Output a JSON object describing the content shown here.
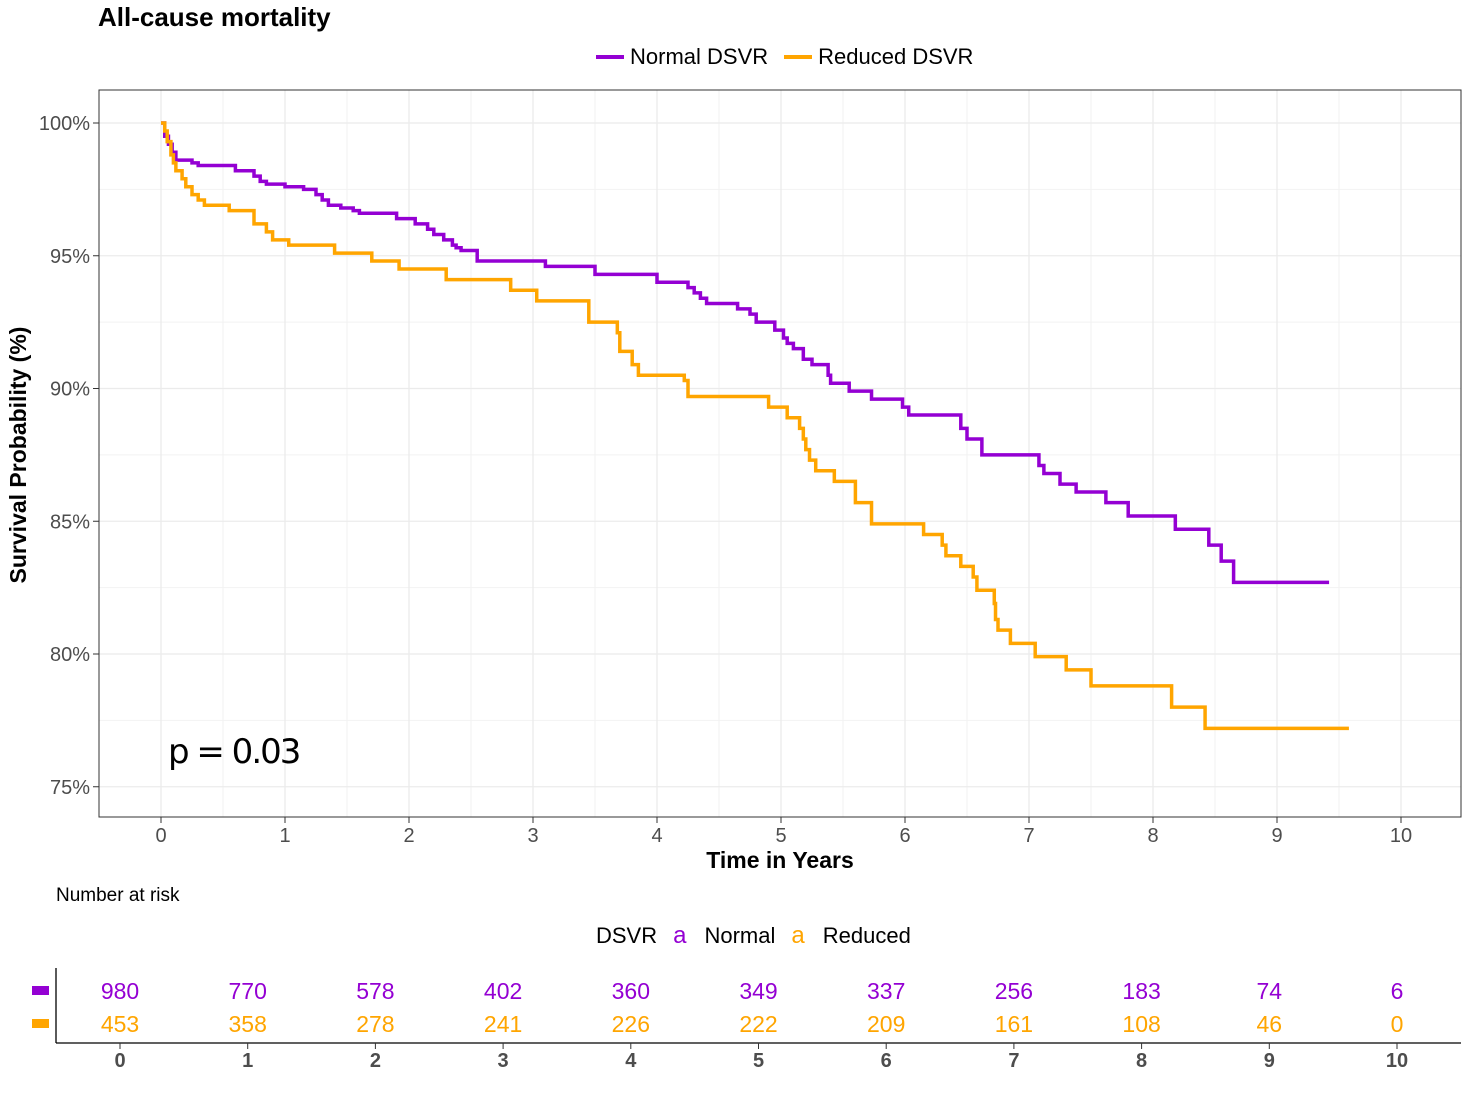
{
  "chart_data": {
    "type": "line",
    "title": "All-cause mortality",
    "xlabel": "Time in Years",
    "ylabel": "Survival Probability (%)",
    "xlim": [
      0,
      10
    ],
    "ylim": [
      75,
      100
    ],
    "x_ticks": [
      "0",
      "1",
      "2",
      "3",
      "4",
      "5",
      "6",
      "7",
      "8",
      "9",
      "10"
    ],
    "y_ticks": [
      "75%",
      "80%",
      "85%",
      "90%",
      "95%",
      "100%"
    ],
    "grid": true,
    "legend_position": "top",
    "annotation": "p = 0.03",
    "series": [
      {
        "name": "Normal DSVR",
        "color": "#9400D3",
        "points": [
          [
            0,
            100
          ],
          [
            0.03,
            99.5
          ],
          [
            0.06,
            99.2
          ],
          [
            0.09,
            98.9
          ],
          [
            0.12,
            98.6
          ],
          [
            0.25,
            98.5
          ],
          [
            0.3,
            98.4
          ],
          [
            0.6,
            98.2
          ],
          [
            0.75,
            98.0
          ],
          [
            0.8,
            97.8
          ],
          [
            0.85,
            97.7
          ],
          [
            1.0,
            97.6
          ],
          [
            1.15,
            97.5
          ],
          [
            1.25,
            97.3
          ],
          [
            1.3,
            97.1
          ],
          [
            1.35,
            96.9
          ],
          [
            1.45,
            96.8
          ],
          [
            1.55,
            96.7
          ],
          [
            1.6,
            96.6
          ],
          [
            1.9,
            96.4
          ],
          [
            2.05,
            96.2
          ],
          [
            2.15,
            96.0
          ],
          [
            2.2,
            95.8
          ],
          [
            2.28,
            95.6
          ],
          [
            2.35,
            95.4
          ],
          [
            2.38,
            95.3
          ],
          [
            2.42,
            95.2
          ],
          [
            2.55,
            94.8
          ],
          [
            3.1,
            94.6
          ],
          [
            3.5,
            94.3
          ],
          [
            4.0,
            94.0
          ],
          [
            4.25,
            93.8
          ],
          [
            4.3,
            93.6
          ],
          [
            4.35,
            93.4
          ],
          [
            4.4,
            93.2
          ],
          [
            4.65,
            93.0
          ],
          [
            4.75,
            92.8
          ],
          [
            4.8,
            92.5
          ],
          [
            4.95,
            92.2
          ],
          [
            5.02,
            91.9
          ],
          [
            5.05,
            91.7
          ],
          [
            5.1,
            91.5
          ],
          [
            5.18,
            91.1
          ],
          [
            5.25,
            90.9
          ],
          [
            5.38,
            90.5
          ],
          [
            5.4,
            90.2
          ],
          [
            5.55,
            89.9
          ],
          [
            5.73,
            89.6
          ],
          [
            5.98,
            89.3
          ],
          [
            6.03,
            89.0
          ],
          [
            6.45,
            88.5
          ],
          [
            6.5,
            88.1
          ],
          [
            6.62,
            87.5
          ],
          [
            7.08,
            87.1
          ],
          [
            7.12,
            86.8
          ],
          [
            7.25,
            86.4
          ],
          [
            7.38,
            86.1
          ],
          [
            7.62,
            85.7
          ],
          [
            7.8,
            85.2
          ],
          [
            8.18,
            84.7
          ],
          [
            8.45,
            84.1
          ],
          [
            8.55,
            83.5
          ],
          [
            8.65,
            82.7
          ],
          [
            9.42,
            82.7
          ]
        ]
      },
      {
        "name": "Reduced DSVR",
        "color": "#FFA500",
        "points": [
          [
            0,
            100
          ],
          [
            0.03,
            99.7
          ],
          [
            0.05,
            99.3
          ],
          [
            0.08,
            98.8
          ],
          [
            0.1,
            98.5
          ],
          [
            0.12,
            98.2
          ],
          [
            0.17,
            97.9
          ],
          [
            0.2,
            97.6
          ],
          [
            0.25,
            97.3
          ],
          [
            0.3,
            97.1
          ],
          [
            0.35,
            96.9
          ],
          [
            0.55,
            96.7
          ],
          [
            0.75,
            96.2
          ],
          [
            0.85,
            95.9
          ],
          [
            0.9,
            95.6
          ],
          [
            1.03,
            95.4
          ],
          [
            1.4,
            95.1
          ],
          [
            1.7,
            94.8
          ],
          [
            1.92,
            94.5
          ],
          [
            2.3,
            94.1
          ],
          [
            2.82,
            93.7
          ],
          [
            3.03,
            93.3
          ],
          [
            3.45,
            92.5
          ],
          [
            3.68,
            92.1
          ],
          [
            3.7,
            91.4
          ],
          [
            3.8,
            90.9
          ],
          [
            3.85,
            90.5
          ],
          [
            4.22,
            90.3
          ],
          [
            4.25,
            89.7
          ],
          [
            4.9,
            89.3
          ],
          [
            5.05,
            88.9
          ],
          [
            5.15,
            88.5
          ],
          [
            5.18,
            88.1
          ],
          [
            5.2,
            87.7
          ],
          [
            5.23,
            87.3
          ],
          [
            5.28,
            86.9
          ],
          [
            5.43,
            86.5
          ],
          [
            5.6,
            85.7
          ],
          [
            5.73,
            84.9
          ],
          [
            6.15,
            84.5
          ],
          [
            6.3,
            84.1
          ],
          [
            6.33,
            83.7
          ],
          [
            6.45,
            83.3
          ],
          [
            6.55,
            82.9
          ],
          [
            6.58,
            82.4
          ],
          [
            6.72,
            81.9
          ],
          [
            6.73,
            81.3
          ],
          [
            6.75,
            80.9
          ],
          [
            6.85,
            80.4
          ],
          [
            7.05,
            79.9
          ],
          [
            7.3,
            79.4
          ],
          [
            7.5,
            78.8
          ],
          [
            8.15,
            78.0
          ],
          [
            8.42,
            77.2
          ],
          [
            9.58,
            77.2
          ]
        ]
      }
    ],
    "risk_table": {
      "title": "Number at risk",
      "legend_label": "DSVR",
      "legend_glyph": "a",
      "strata": [
        {
          "name": "Normal",
          "color": "#9400D3",
          "values": [
            "980",
            "770",
            "578",
            "402",
            "360",
            "349",
            "337",
            "256",
            "183",
            "74",
            "6"
          ]
        },
        {
          "name": "Reduced",
          "color": "#FFA500",
          "values": [
            "453",
            "358",
            "278",
            "241",
            "226",
            "222",
            "209",
            "161",
            "108",
            "46",
            "0"
          ]
        }
      ],
      "x_ticks": [
        "0",
        "1",
        "2",
        "3",
        "4",
        "5",
        "6",
        "7",
        "8",
        "9",
        "10"
      ]
    }
  }
}
